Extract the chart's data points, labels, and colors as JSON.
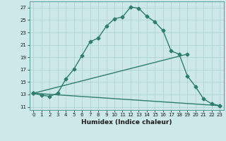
{
  "title": "",
  "xlabel": "Humidex (Indice chaleur)",
  "bg_color": "#cce8e8",
  "grid_color": "#aacfcf",
  "line_color": "#2e7d6e",
  "xlim": [
    -0.5,
    23.5
  ],
  "ylim": [
    10.5,
    28.0
  ],
  "xticks": [
    0,
    1,
    2,
    3,
    4,
    5,
    6,
    7,
    8,
    9,
    10,
    11,
    12,
    13,
    14,
    15,
    16,
    17,
    18,
    19,
    20,
    21,
    22,
    23
  ],
  "yticks": [
    11,
    13,
    15,
    17,
    19,
    21,
    23,
    25,
    27
  ],
  "curve1_x": [
    0,
    1,
    2,
    3,
    4,
    5,
    6,
    7,
    8,
    9,
    10,
    11,
    12,
    13,
    14,
    15,
    16,
    17,
    18,
    19,
    20,
    21,
    22,
    23
  ],
  "curve1_y": [
    13.2,
    12.9,
    12.7,
    13.2,
    15.5,
    17.1,
    19.3,
    21.5,
    22.1,
    24.0,
    25.2,
    25.5,
    27.1,
    26.9,
    25.6,
    24.7,
    23.3,
    20.0,
    19.5,
    16.0,
    14.3,
    12.3,
    11.5,
    11.2
  ],
  "curve2_x": [
    0,
    19
  ],
  "curve2_y": [
    13.2,
    19.5
  ],
  "curve3_x": [
    0,
    23
  ],
  "curve3_y": [
    13.2,
    11.2
  ],
  "marker": "D",
  "marker_size": 2.5,
  "linewidth": 1.0,
  "xlabel_fontsize": 6.5,
  "tick_fontsize": 5.0
}
